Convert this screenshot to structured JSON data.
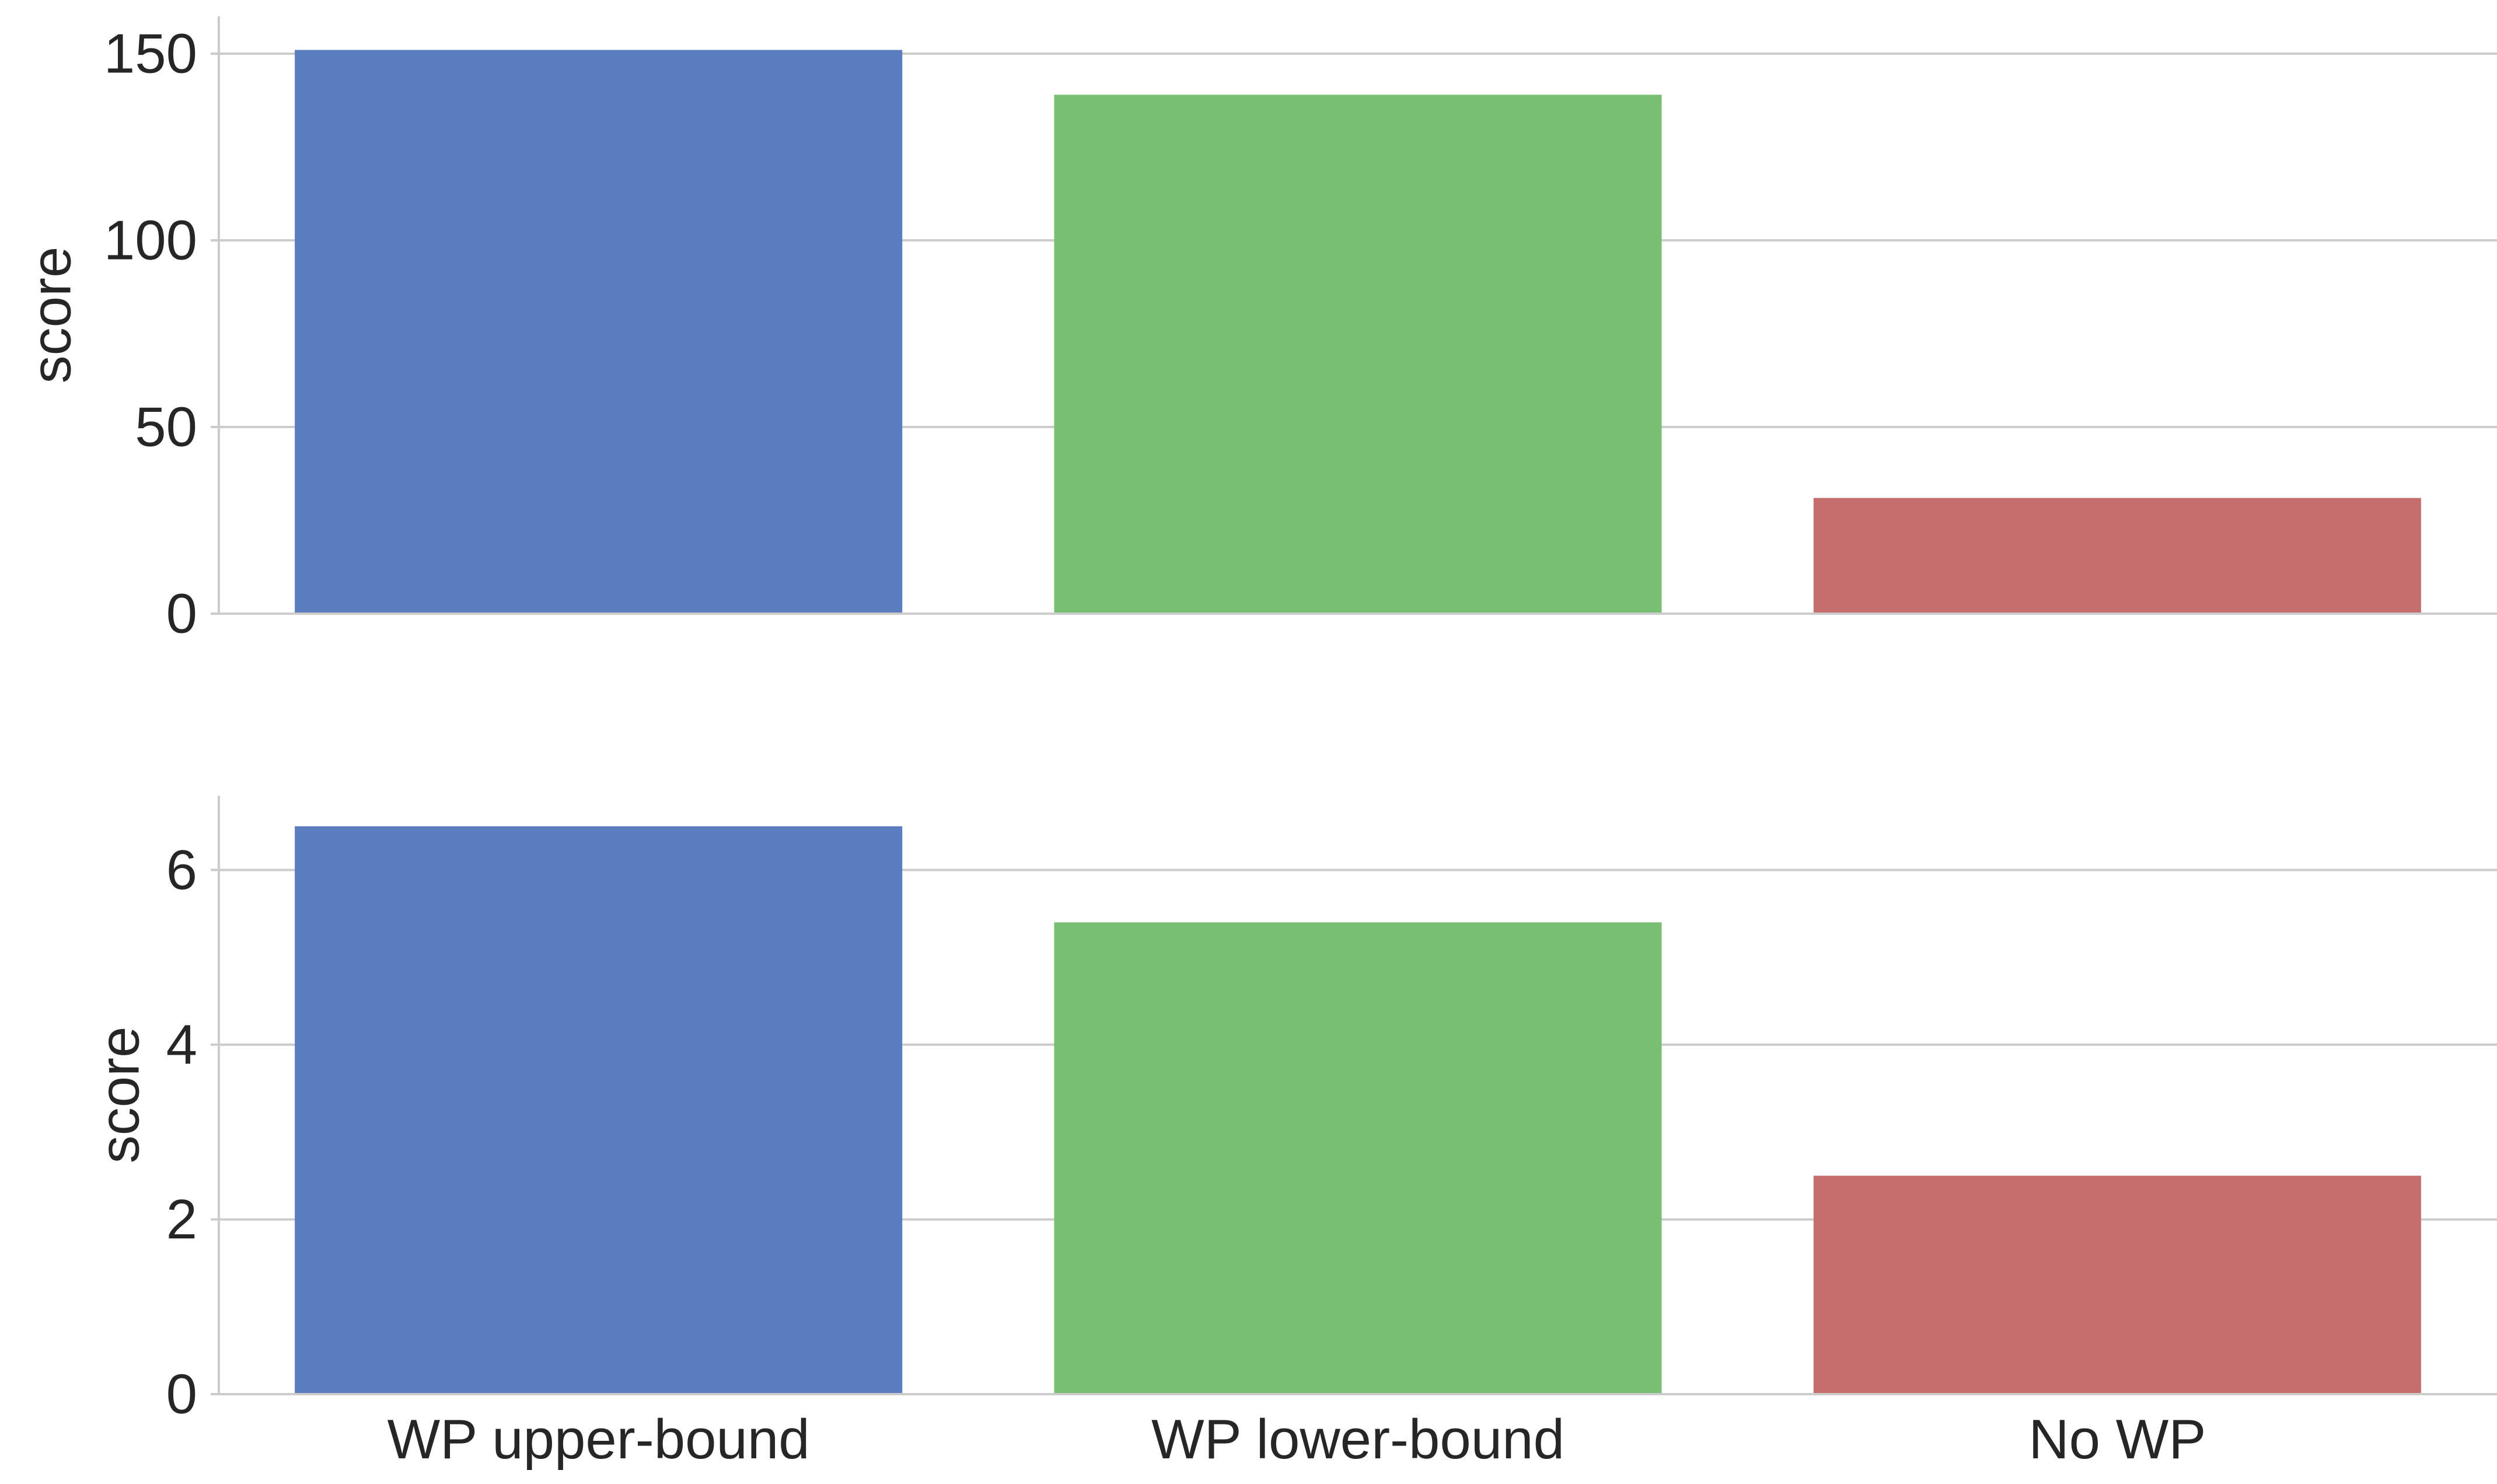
{
  "chart_data": [
    {
      "type": "bar",
      "categories": [
        "WP upper-bound",
        "WP lower-bound",
        "No WP"
      ],
      "values": [
        151,
        139,
        31
      ],
      "colors": [
        "#5b7dbf",
        "#77bf73",
        "#c66e6e"
      ],
      "title": "",
      "xlabel": "",
      "ylabel": "score",
      "ylim": [
        0,
        160
      ],
      "yticks": [
        0,
        50,
        100,
        150
      ],
      "grid": "horizontal",
      "show_category_labels": false
    },
    {
      "type": "bar",
      "categories": [
        "WP upper-bound",
        "WP lower-bound",
        "No WP"
      ],
      "values": [
        6.5,
        5.4,
        2.5
      ],
      "colors": [
        "#5b7dbf",
        "#77bf73",
        "#c66e6e"
      ],
      "title": "",
      "xlabel": "",
      "ylabel": "score",
      "ylim": [
        0,
        6.85
      ],
      "yticks": [
        0,
        2,
        4,
        6
      ],
      "grid": "horizontal",
      "show_category_labels": true
    }
  ]
}
